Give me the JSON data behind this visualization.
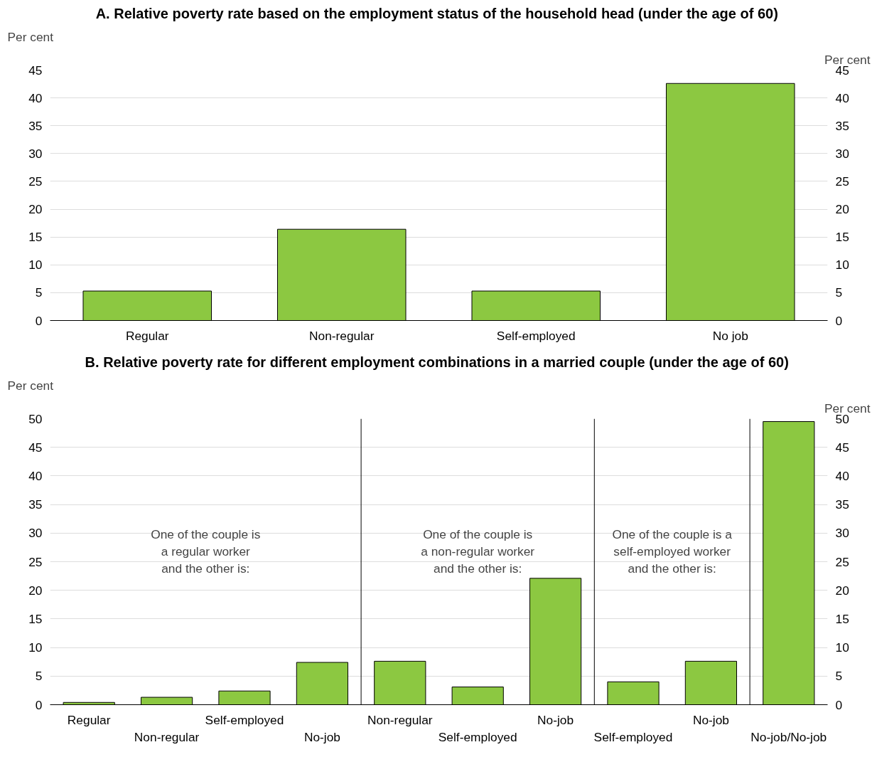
{
  "chart_data": [
    {
      "type": "bar",
      "title": "A.  Relative poverty rate based on the employment status of the household head (under the age of 60)",
      "ylabel": "Per cent",
      "y2label": "Per cent",
      "categories": [
        "Regular",
        "Non-regular",
        "Self-employed",
        "No job"
      ],
      "series": [
        {
          "color": "#8cc841",
          "values": [
            5.3,
            16.4,
            5.3,
            42.6
          ]
        }
      ],
      "ylim": [
        0,
        45
      ],
      "yticks": [
        0,
        5,
        10,
        15,
        20,
        25,
        30,
        35,
        40,
        45
      ],
      "y2lim": [
        0,
        45
      ],
      "y2ticks": [
        0,
        5,
        10,
        15,
        20,
        25,
        30,
        35,
        40,
        45
      ],
      "grid": "y"
    },
    {
      "type": "bar",
      "title": "B.  Relative poverty rate for different employment combinations in a married couple (under the age of 60)",
      "ylabel": "Per cent",
      "y2label": "Per cent",
      "categories": [
        "Regular",
        "Non-regular",
        "Self-employed",
        "No-job",
        "Non-regular",
        "Self-employed",
        "No-job",
        "Self-employed",
        "No-job",
        "No-job/No-job"
      ],
      "series": [
        {
          "color": "#8cc841",
          "values": [
            0.4,
            1.3,
            2.4,
            7.4,
            7.6,
            3.1,
            22.1,
            4.0,
            7.6,
            49.5
          ]
        }
      ],
      "ylim": [
        0,
        50
      ],
      "yticks": [
        0,
        5,
        10,
        15,
        20,
        25,
        30,
        35,
        40,
        45,
        50
      ],
      "y2lim": [
        0,
        50
      ],
      "y2ticks": [
        0,
        5,
        10,
        15,
        20,
        25,
        30,
        35,
        40,
        45,
        50
      ],
      "grid": "y",
      "annotations": [
        "One of the couple is\na regular worker\nand the other is:",
        "One of the couple is\na non-regular worker\nand the other is:",
        "One of the couple is a\nself-employed worker\nand the other is:"
      ]
    }
  ]
}
